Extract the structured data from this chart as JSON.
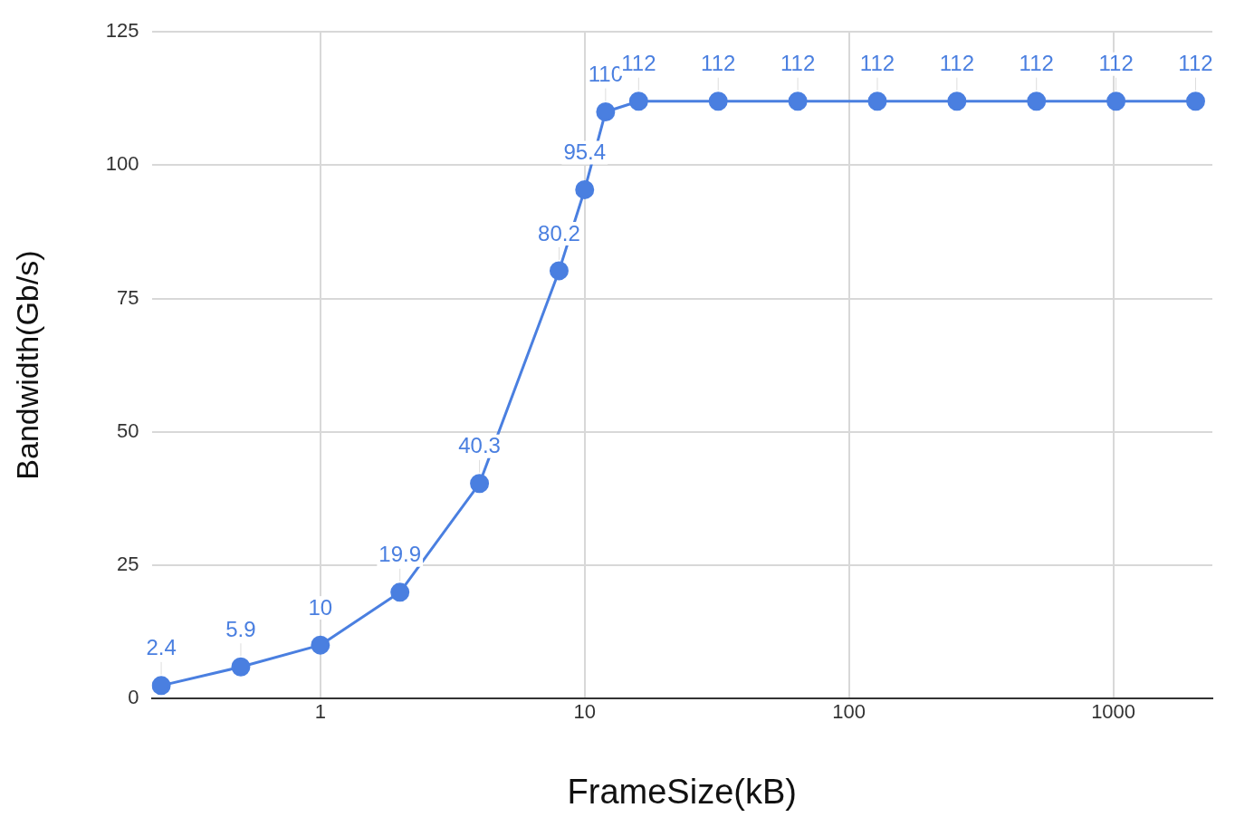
{
  "chart_data": {
    "type": "line",
    "xlabel": "FrameSize(kB)",
    "ylabel": "Bandwidth(Gb/s)",
    "x": [
      0.25,
      0.5,
      1,
      2,
      4,
      8,
      10,
      12,
      16,
      32,
      64,
      128,
      256,
      512,
      1024,
      2048
    ],
    "series": [
      {
        "color": "#4a7fe0",
        "values": [
          2.4,
          5.9,
          10,
          19.9,
          40.3,
          80.2,
          95.4,
          110,
          112,
          112,
          112,
          112,
          112,
          112,
          112,
          112
        ]
      }
    ],
    "log": "x",
    "xlim": [
      0.23,
      2370
    ],
    "xticks": [
      1,
      10,
      100,
      1000
    ],
    "ylim": [
      0,
      125
    ],
    "yticks": [
      0,
      25,
      50,
      75,
      100,
      125
    ],
    "grid": true,
    "legend": false,
    "marker": "circle",
    "line_style": "solid",
    "data_labels": true
  }
}
